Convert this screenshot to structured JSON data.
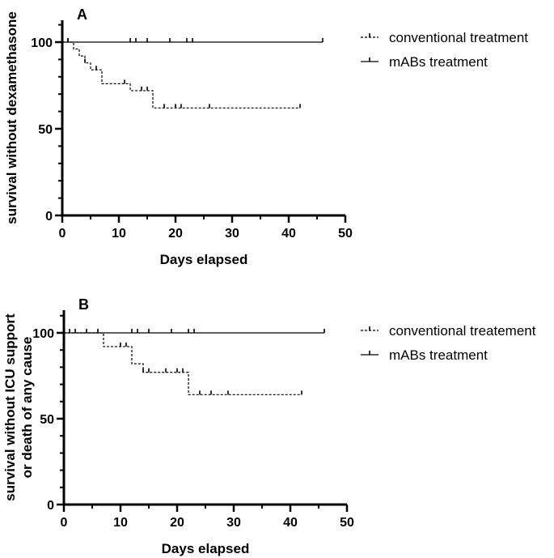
{
  "chart_data": [
    {
      "type": "line",
      "subtype": "kaplan-meier-step",
      "panel_label": "A",
      "title": "",
      "xlabel": "Days elapsed",
      "ylabel": "survival without dexamethasone",
      "xlim": [
        0,
        50
      ],
      "ylim": [
        0,
        100
      ],
      "xticks": [
        0,
        10,
        20,
        30,
        40,
        50
      ],
      "yticks": [
        0,
        50,
        100
      ],
      "grid": false,
      "legend_position": "top-right",
      "series": [
        {
          "name": "conventional treatment",
          "style": "dashed",
          "steps": [
            [
              0,
              100
            ],
            [
              1,
              100
            ],
            [
              2,
              96
            ],
            [
              3,
              92
            ],
            [
              4,
              88
            ],
            [
              5,
              84
            ],
            [
              7,
              76
            ],
            [
              12,
              72
            ],
            [
              16,
              62
            ],
            [
              42,
              62
            ]
          ],
          "censored": [
            [
              1,
              100
            ],
            [
              4,
              88
            ],
            [
              6,
              84
            ],
            [
              11,
              76
            ],
            [
              14,
              72
            ],
            [
              15,
              72
            ],
            [
              18,
              62
            ],
            [
              20,
              62
            ],
            [
              21,
              62
            ],
            [
              26,
              62
            ],
            [
              42,
              62
            ]
          ]
        },
        {
          "name": "mABs treatment",
          "style": "solid",
          "steps": [
            [
              0,
              100
            ],
            [
              46,
              100
            ]
          ],
          "censored": [
            [
              1,
              100
            ],
            [
              12,
              100
            ],
            [
              13,
              100
            ],
            [
              15,
              100
            ],
            [
              19,
              100
            ],
            [
              22,
              100
            ],
            [
              23,
              100
            ],
            [
              46,
              100
            ]
          ]
        }
      ]
    },
    {
      "type": "line",
      "subtype": "kaplan-meier-step",
      "panel_label": "B",
      "title": "",
      "xlabel": "Days elapsed",
      "ylabel": "survival without ICU support or death of any cause",
      "ylabel_lines": [
        "survival without ICU support",
        "or death of any cause"
      ],
      "xlim": [
        0,
        50
      ],
      "ylim": [
        0,
        100
      ],
      "xticks": [
        0,
        10,
        20,
        30,
        40,
        50
      ],
      "yticks": [
        0,
        50,
        100
      ],
      "grid": false,
      "legend_position": "top-right",
      "series": [
        {
          "name": "conventional treatement",
          "style": "dashed",
          "steps": [
            [
              0,
              100
            ],
            [
              7,
              92
            ],
            [
              12,
              82
            ],
            [
              14,
              77
            ],
            [
              22,
              64
            ],
            [
              42,
              64
            ]
          ],
          "censored": [
            [
              10,
              92
            ],
            [
              11,
              92
            ],
            [
              14,
              77
            ],
            [
              15,
              77
            ],
            [
              18,
              77
            ],
            [
              20,
              77
            ],
            [
              21,
              77
            ],
            [
              24,
              64
            ],
            [
              26,
              64
            ],
            [
              29,
              64
            ],
            [
              42,
              64
            ]
          ]
        },
        {
          "name": "mABs treatment",
          "style": "solid",
          "steps": [
            [
              0,
              100
            ],
            [
              46,
              100
            ]
          ],
          "censored": [
            [
              1,
              100
            ],
            [
              2,
              100
            ],
            [
              4,
              100
            ],
            [
              6,
              100
            ],
            [
              12,
              100
            ],
            [
              13,
              100
            ],
            [
              15,
              100
            ],
            [
              19,
              100
            ],
            [
              22,
              100
            ],
            [
              23,
              100
            ],
            [
              46,
              100
            ]
          ]
        }
      ]
    }
  ]
}
